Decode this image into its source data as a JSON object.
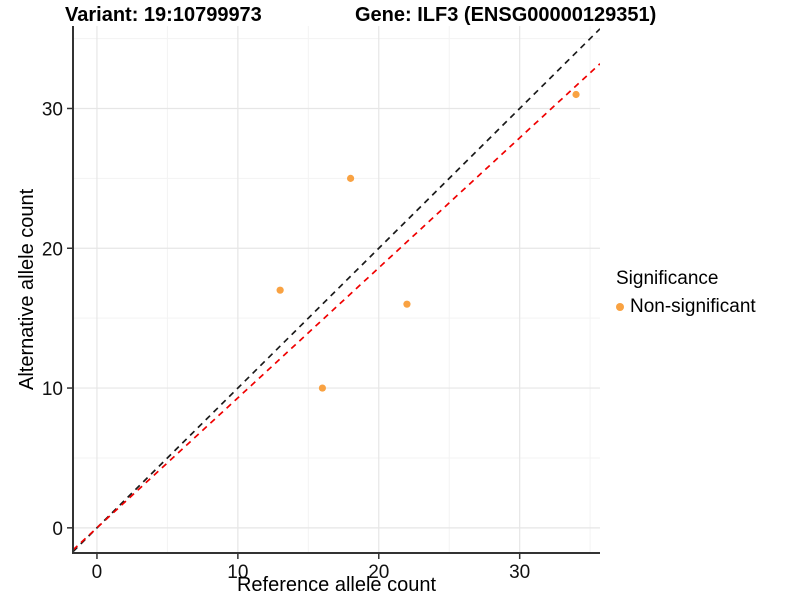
{
  "chart_data": {
    "type": "scatter",
    "title_left": "Variant: 19:10799973",
    "title_right": "Gene: ILF3 (ENSG00000129351)",
    "xlabel": "Reference allele count",
    "ylabel": "Alternative allele count",
    "xlim": [
      -1.7,
      35.7
    ],
    "ylim": [
      -1.8,
      35.9
    ],
    "x_major_ticks": [
      0,
      10,
      20,
      30
    ],
    "y_major_ticks": [
      0,
      10,
      20,
      30
    ],
    "x_minor_gridlines": [
      5,
      15,
      25,
      35
    ],
    "y_minor_gridlines": [
      5,
      15,
      25,
      35
    ],
    "grid": "major and minor gridlines, light gray on white",
    "series": [
      {
        "name": "Non-significant",
        "color": "#F9A242",
        "points": [
          {
            "x": 34,
            "y": 31
          },
          {
            "x": 18,
            "y": 25
          },
          {
            "x": 13,
            "y": 17
          },
          {
            "x": 22,
            "y": 16
          },
          {
            "x": 16,
            "y": 10
          }
        ]
      }
    ],
    "reference_lines": [
      {
        "name": "identity",
        "slope": 1,
        "intercept": 0,
        "color": "#1A1A1A",
        "linetype": "dashed"
      },
      {
        "name": "expected-ratio",
        "slope": 0.93,
        "intercept": 0,
        "color": "#F00000",
        "linetype": "dashed"
      }
    ],
    "legend": {
      "title": "Significance",
      "position": "right",
      "items": [
        {
          "label": "Non-significant",
          "color": "#F9A242"
        }
      ]
    }
  }
}
